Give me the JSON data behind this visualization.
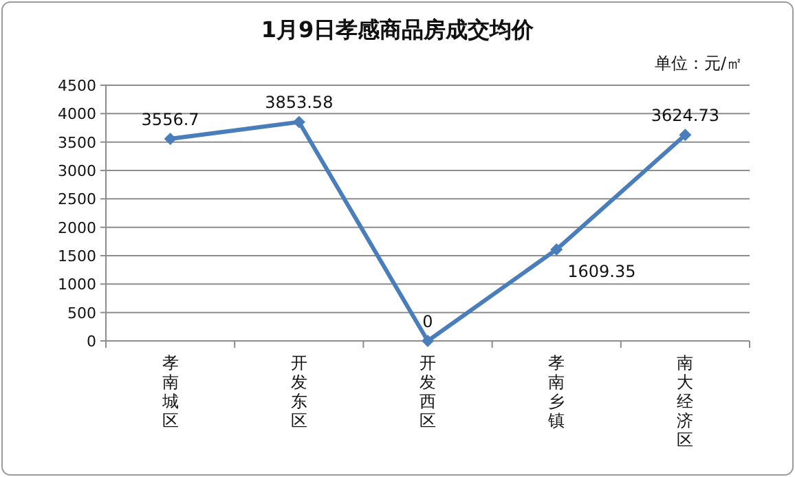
{
  "chart_data": {
    "type": "line",
    "title": "1月9日孝感商品房成交均价",
    "subtitle": "单位：元/㎡",
    "categories": [
      "孝南城区",
      "开发东区",
      "开发西区",
      "孝南乡镇",
      "南大经济区"
    ],
    "series": [
      {
        "color": "#4a7ebb",
        "values": [
          3556.7,
          3853.58,
          0,
          1609.35,
          3624.73
        ]
      }
    ],
    "ylim": [
      0,
      4500
    ],
    "yticks": [
      0,
      500,
      1000,
      1500,
      2000,
      2500,
      3000,
      3500,
      4000,
      4500
    ],
    "grid": "y",
    "marker": "diamond",
    "line_style": "solid",
    "data_labels": true
  }
}
